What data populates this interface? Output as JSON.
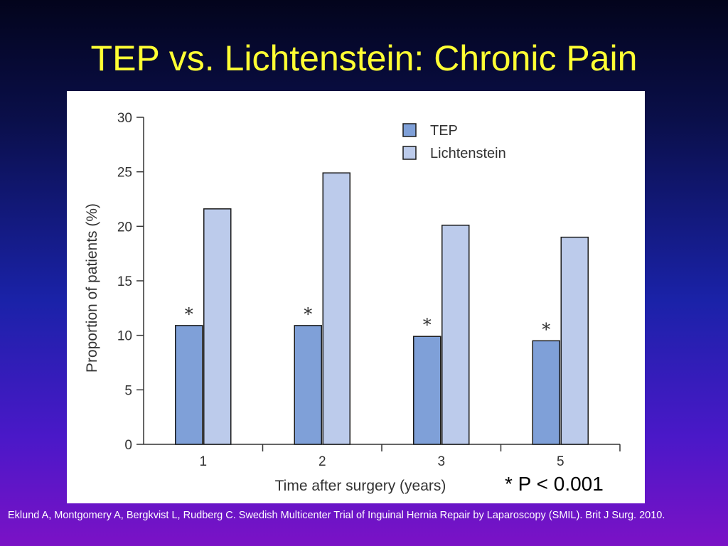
{
  "slide": {
    "title": "TEP vs. Lichtenstein: Chronic Pain",
    "footnote": "* P < 0.001",
    "citation": "Eklund A, Montgomery A, Bergkvist L, Rudberg C.  Swedish Multicenter Trial of Inguinal Hernia Repair by Laparoscopy (SMIL). Brit J Surg.  2010."
  },
  "colors": {
    "title": "#ffff33",
    "tep": "#7fa0d8",
    "lichtenstein": "#bccbeb",
    "bar_stroke": "#1a1a1a"
  },
  "chart_data": {
    "type": "bar",
    "categories": [
      "1",
      "2",
      "3",
      "5"
    ],
    "series": [
      {
        "name": "TEP",
        "values": [
          10.9,
          10.9,
          9.9,
          9.5
        ]
      },
      {
        "name": "Lichtenstein",
        "values": [
          21.6,
          24.9,
          20.1,
          19.0
        ]
      }
    ],
    "significance_marks": [
      "*",
      "*",
      "*",
      "*"
    ],
    "xlabel": "Time after surgery (years)",
    "ylabel": "Proportion of patients (%)",
    "ylim": [
      0,
      30
    ],
    "yticks": [
      0,
      5,
      10,
      15,
      20,
      25,
      30
    ],
    "grid": false,
    "legend_position": "top-right"
  }
}
